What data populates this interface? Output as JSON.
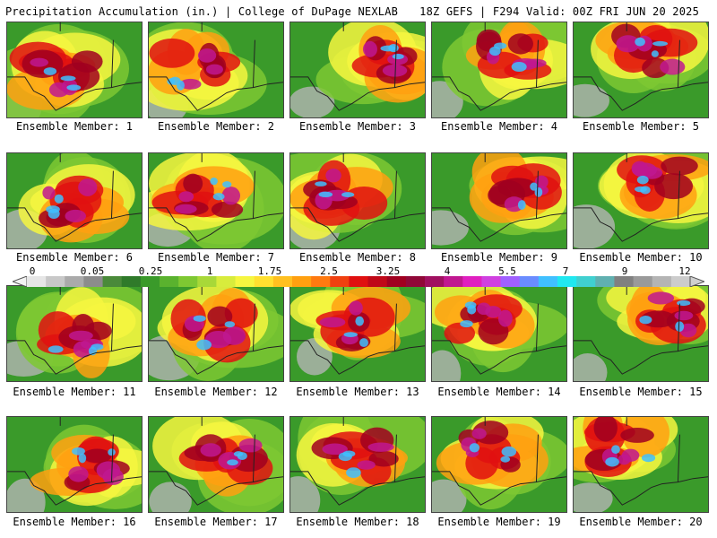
{
  "header": {
    "left": "Precipitation Accumulation (in.) | College of DuPage NEXLAB",
    "right": "18Z GEFS | F294 Valid: 00Z FRI JUN 20 2025"
  },
  "panels": [
    {
      "caption": "Ensemble Member: 1"
    },
    {
      "caption": "Ensemble Member: 2"
    },
    {
      "caption": "Ensemble Member: 3"
    },
    {
      "caption": "Ensemble Member: 4"
    },
    {
      "caption": "Ensemble Member: 5"
    },
    {
      "caption": "Ensemble Member: 6"
    },
    {
      "caption": "Ensemble Member: 7"
    },
    {
      "caption": "Ensemble Member: 8"
    },
    {
      "caption": "Ensemble Member: 9"
    },
    {
      "caption": "Ensemble Member: 10"
    },
    {
      "caption": "Ensemble Member: 11"
    },
    {
      "caption": "Ensemble Member: 12"
    },
    {
      "caption": "Ensemble Member: 13"
    },
    {
      "caption": "Ensemble Member: 14"
    },
    {
      "caption": "Ensemble Member: 15"
    },
    {
      "caption": "Ensemble Member: 16"
    },
    {
      "caption": "Ensemble Member: 17"
    },
    {
      "caption": "Ensemble Member: 18"
    },
    {
      "caption": "Ensemble Member: 19"
    },
    {
      "caption": "Ensemble Member: 20"
    }
  ],
  "colorbar": {
    "labels": [
      "0",
      "0.05",
      "0.25",
      "1",
      "1.75",
      "2.5",
      "3.25",
      "4",
      "5.5",
      "7",
      "9",
      "12"
    ],
    "colors": [
      "#e6e6e6",
      "#c8c8c8",
      "#aaaaaa",
      "#8c8c8c",
      "#4a8a3a",
      "#2f7a2a",
      "#3a9a2a",
      "#5ab22e",
      "#7ec832",
      "#a8d838",
      "#d8ec3c",
      "#f6f640",
      "#ffe030",
      "#ffc020",
      "#ffa010",
      "#ff7a10",
      "#f04010",
      "#e01010",
      "#c00818",
      "#a00020",
      "#900838",
      "#a01060",
      "#c01890",
      "#e020c0",
      "#d040e0",
      "#a060ff",
      "#6a8cff",
      "#40c0ff",
      "#20e8f0",
      "#40d0d0",
      "#60b0b0",
      "#808080",
      "#9a9a9a",
      "#b4b4b4",
      "#cccccc"
    ]
  }
}
